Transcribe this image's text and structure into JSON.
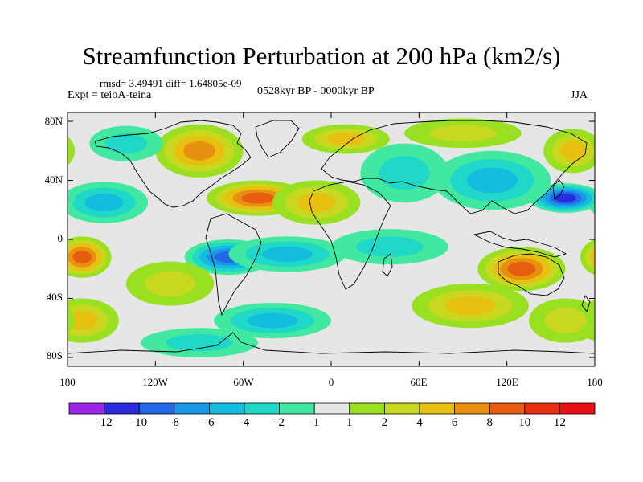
{
  "title": "Streamfunction Perturbation at 200 hPa (km2/s)",
  "stats": "rmsd= 3.49491 diff= 1.64805e-09",
  "experiment": "Expt = teioA-teina",
  "period": "0528kyr BP - 0000kyr BP",
  "season": "JJA",
  "lat_labels": [
    "80N",
    "40N",
    "0",
    "40S",
    "80S"
  ],
  "lon_labels": [
    "180",
    "120W",
    "60W",
    "0",
    "60E",
    "120E",
    "180"
  ],
  "colorbar": {
    "labels": [
      "-12",
      "-10",
      "-8",
      "-6",
      "-4",
      "-2",
      "-1",
      "1",
      "2",
      "4",
      "6",
      "8",
      "10",
      "12"
    ],
    "colors": [
      "#9b25e8",
      "#2a2ae0",
      "#2468e8",
      "#1a98e8",
      "#14bce0",
      "#20d8c8",
      "#40e8a0",
      "#e6e6e6",
      "#98e020",
      "#c8d820",
      "#e8c010",
      "#e89010",
      "#e85c10",
      "#e83010",
      "#e81010"
    ]
  },
  "field_blobs": [
    {
      "lon": -90,
      "lat": 60,
      "value": 7,
      "rlon": 30,
      "rlat": 18
    },
    {
      "lon": -50,
      "lat": 28,
      "value": 9,
      "rlon": 35,
      "rlat": 12
    },
    {
      "lon": -155,
      "lat": 25,
      "value": -5,
      "rlon": 30,
      "rlat": 14
    },
    {
      "lon": -140,
      "lat": 65,
      "value": -3,
      "rlon": 25,
      "rlat": 12
    },
    {
      "lon": 160,
      "lat": 28,
      "value": -10,
      "rlon": 25,
      "rlat": 10
    },
    {
      "lon": 110,
      "lat": 40,
      "value": -5,
      "rlon": 40,
      "rlat": 20
    },
    {
      "lon": 50,
      "lat": 45,
      "value": -3,
      "rlon": 30,
      "rlat": 20
    },
    {
      "lon": 90,
      "lat": 72,
      "value": 3,
      "rlon": 40,
      "rlat": 10
    },
    {
      "lon": 10,
      "lat": 68,
      "value": 4,
      "rlon": 30,
      "rlat": 10
    },
    {
      "lon": -10,
      "lat": 25,
      "value": 5,
      "rlon": 30,
      "rlat": 15
    },
    {
      "lon": -70,
      "lat": -12,
      "value": -9,
      "rlon": 30,
      "rlat": 12
    },
    {
      "lon": -30,
      "lat": -10,
      "value": -4,
      "rlon": 40,
      "rlat": 12
    },
    {
      "lon": 40,
      "lat": -5,
      "value": -3,
      "rlon": 40,
      "rlat": 12
    },
    {
      "lon": 130,
      "lat": -20,
      "value": 9,
      "rlon": 30,
      "rlat": 15
    },
    {
      "lon": 95,
      "lat": -45,
      "value": 5,
      "rlon": 40,
      "rlat": 15
    },
    {
      "lon": -170,
      "lat": -12,
      "value": 9,
      "rlon": 20,
      "rlat": 14
    },
    {
      "lon": -170,
      "lat": -55,
      "value": 5,
      "rlon": 25,
      "rlat": 15
    },
    {
      "lon": -110,
      "lat": -30,
      "value": 2,
      "rlon": 30,
      "rlat": 15
    },
    {
      "lon": -40,
      "lat": -55,
      "value": -4,
      "rlon": 40,
      "rlat": 12
    },
    {
      "lon": -90,
      "lat": -70,
      "value": -3,
      "rlon": 40,
      "rlat": 10
    },
    {
      "lon": 160,
      "lat": -55,
      "value": 3,
      "rlon": 25,
      "rlat": 15
    },
    {
      "lon": 165,
      "lat": 60,
      "value": 4,
      "rlon": 20,
      "rlat": 15
    }
  ]
}
